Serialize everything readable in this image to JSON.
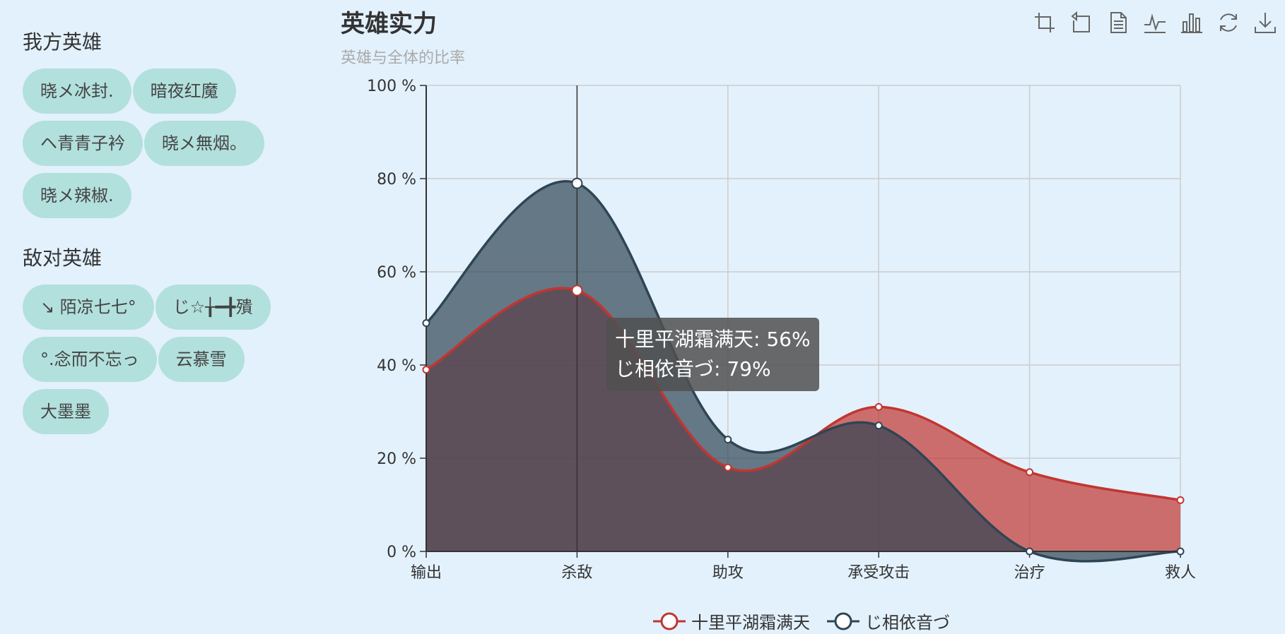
{
  "sidebar": {
    "our_title": "我方英雄",
    "our_heroes": [
      "晓メ冰封.",
      "暗夜红魔",
      "ヘ青青子衿",
      "晓メ無烟。",
      "晓メ辣椒."
    ],
    "enemy_title": "敌对英雄",
    "enemy_heroes": [
      "↘ 陌凉七七°",
      "じ☆╁━╋殨",
      "°.念而不忘っ",
      "云慕雪",
      "大墨墨"
    ]
  },
  "toolbox": {
    "icons": [
      "zoom-icon",
      "zoom-reset-icon",
      "data-view-icon",
      "line-chart-icon",
      "bar-chart-icon",
      "restore-icon",
      "save-image-icon"
    ]
  },
  "tooltip": {
    "line1": "十里平湖霜满天: 56%",
    "line2": "じ相依音づ: 79%"
  },
  "colors": {
    "series1": "#c23531",
    "series2": "#2f4554",
    "chip_bg": "#b2e0dd",
    "page_bg": "#e3f1fc"
  },
  "chart_data": {
    "type": "area",
    "title": "英雄实力",
    "subtitle": "英雄与全体的比率",
    "categories": [
      "输出",
      "杀敌",
      "助攻",
      "承受攻击",
      "治疗",
      "救人"
    ],
    "series": [
      {
        "name": "十里平湖霜满天",
        "values": [
          39,
          56,
          18,
          31,
          17,
          11
        ]
      },
      {
        "name": "じ相依音づ",
        "values": [
          49,
          79,
          24,
          27,
          0,
          0
        ]
      }
    ],
    "ylim": [
      0,
      100
    ],
    "yticks": [
      "0 %",
      "20 %",
      "40 %",
      "60 %",
      "80 %",
      "100 %"
    ],
    "y_tick_values": [
      0,
      20,
      40,
      60,
      80,
      100
    ],
    "grid": true,
    "smooth": true,
    "highlighted_category": "杀敌",
    "legend_position": "bottom"
  }
}
